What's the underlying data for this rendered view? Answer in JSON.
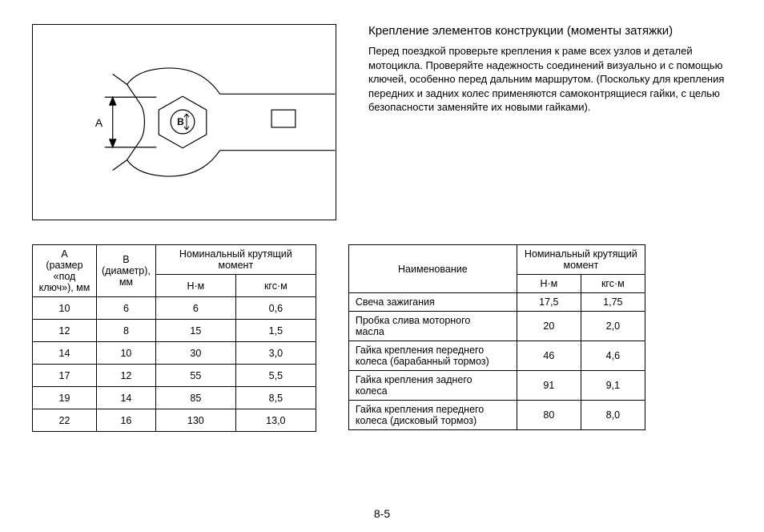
{
  "header": {
    "title": "Крепление элементов конструкции (моменты затяжки)",
    "paragraph": "Перед поездкой проверьте крепления к раме всех узлов и деталей мотоцикла. Проверяйте надежность соединений визуально и с помощью ключей, особенно перед дальним маршрутом. (Поскольку для крепления передних и задних колес применяются самоконтрящиеся гайки, с целью безопасности заменяйте их новыми гайками)."
  },
  "diagram": {
    "label_A": "A",
    "label_B": "B",
    "stroke": "#000000",
    "fill": "#ffffff"
  },
  "table1": {
    "col_A": "A\n(размер «под\nключ»), мм",
    "col_B": "B\n(диаметр),\nмм",
    "col_torque": "Номинальный крутящий момент",
    "unit_nm": "Н·м",
    "unit_kgsm": "кгс·м",
    "rows": [
      {
        "a": "10",
        "b": "6",
        "nm": "6",
        "kgsm": "0,6"
      },
      {
        "a": "12",
        "b": "8",
        "nm": "15",
        "kgsm": "1,5"
      },
      {
        "a": "14",
        "b": "10",
        "nm": "30",
        "kgsm": "3,0"
      },
      {
        "a": "17",
        "b": "12",
        "nm": "55",
        "kgsm": "5,5"
      },
      {
        "a": "19",
        "b": "14",
        "nm": "85",
        "kgsm": "8,5"
      },
      {
        "a": "22",
        "b": "16",
        "nm": "130",
        "kgsm": "13,0"
      }
    ],
    "col_widths": {
      "a": 80,
      "b": 65,
      "nm": 100,
      "kgsm": 100
    }
  },
  "table2": {
    "col_name": "Наименование",
    "col_torque": "Номинальный крутящий\nмомент",
    "unit_nm": "Н·м",
    "unit_kgsm": "кгс·м",
    "rows": [
      {
        "name": "Свеча зажигания",
        "nm": "17,5",
        "kgsm": "1,75"
      },
      {
        "name": "Пробка слива моторного\nмасла",
        "nm": "20",
        "kgsm": "2,0"
      },
      {
        "name": "Гайка крепления переднего\nколеса (барабанный тормоз)",
        "nm": "46",
        "kgsm": "4,6"
      },
      {
        "name": "Гайка крепления заднего\nколеса",
        "nm": "91",
        "kgsm": "9,1"
      },
      {
        "name": "Гайка крепления переднего\nколеса (дисковый тормоз)",
        "nm": "80",
        "kgsm": "8,0"
      }
    ],
    "col_widths": {
      "name": 210,
      "nm": 80,
      "kgsm": 80
    }
  },
  "page_number": "8-5"
}
